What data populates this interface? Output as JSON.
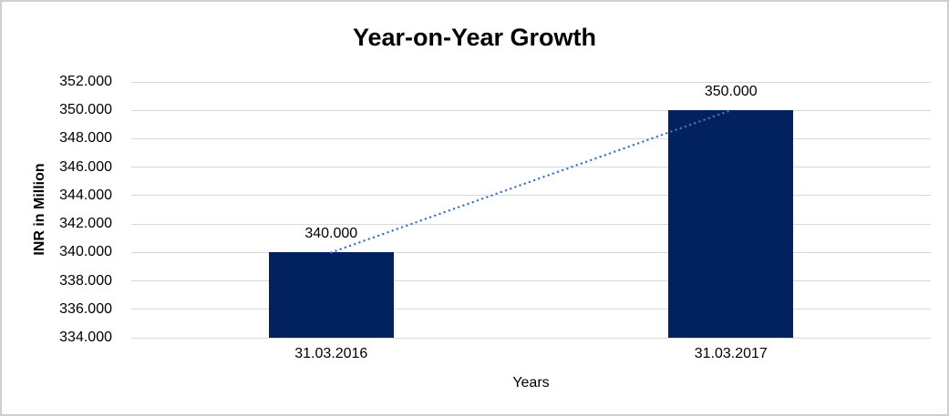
{
  "chart_data": {
    "type": "bar",
    "title": "Year-on-Year Growth",
    "xlabel": "Years",
    "ylabel": "INR in Million",
    "categories": [
      "31.03.2016",
      "31.03.2017"
    ],
    "values": [
      340000,
      350000
    ],
    "value_labels": [
      "340.000",
      "350.000"
    ],
    "ylim": [
      334000,
      352000
    ],
    "ytick_step": 2000,
    "ytick_labels": [
      "334.000",
      "336.000",
      "338.000",
      "340.000",
      "342.000",
      "344.000",
      "346.000",
      "348.000",
      "350.000",
      "352.000"
    ],
    "grid": true,
    "legend": "none",
    "bar_color": "#02215f",
    "trendline": {
      "style": "dotted",
      "color": "#4472c4"
    },
    "gridline_color": "#d9d9d9",
    "border_color": "#d0cece",
    "text_color": "#000000"
  }
}
